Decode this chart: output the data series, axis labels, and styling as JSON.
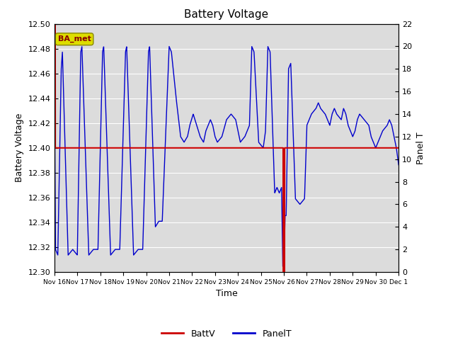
{
  "title": "Battery Voltage",
  "xlabel": "Time",
  "ylabel_left": "Battery Voltage",
  "ylabel_right": "Panel T",
  "ylim_left": [
    12.3,
    12.5
  ],
  "ylim_right": [
    0,
    22
  ],
  "battv_value": 12.4,
  "battv_color": "#cc0000",
  "panel_color": "#0000cc",
  "bg_color": "#dcdcdc",
  "annotation_text": "BA_met",
  "annotation_box_color": "#dddd00",
  "annotation_text_color": "#880000",
  "xtick_labels": [
    "Nov 16",
    "Nov 17",
    "Nov 18",
    "Nov 19",
    "Nov 20",
    "Nov 21",
    "Nov 22",
    "Nov 23",
    "Nov 24",
    "Nov 25",
    "Nov 26",
    "Nov 27",
    "Nov 28",
    "Nov 29",
    "Nov 30",
    "Dec 1"
  ],
  "ytick_left": [
    12.3,
    12.32,
    12.34,
    12.36,
    12.38,
    12.4,
    12.42,
    12.44,
    12.46,
    12.48,
    12.5
  ],
  "ytick_right": [
    0,
    2,
    4,
    6,
    8,
    10,
    12,
    14,
    16,
    18,
    20,
    22
  ],
  "legend_battv": "BattV",
  "legend_panelt": "PanelT",
  "total_days": 15
}
